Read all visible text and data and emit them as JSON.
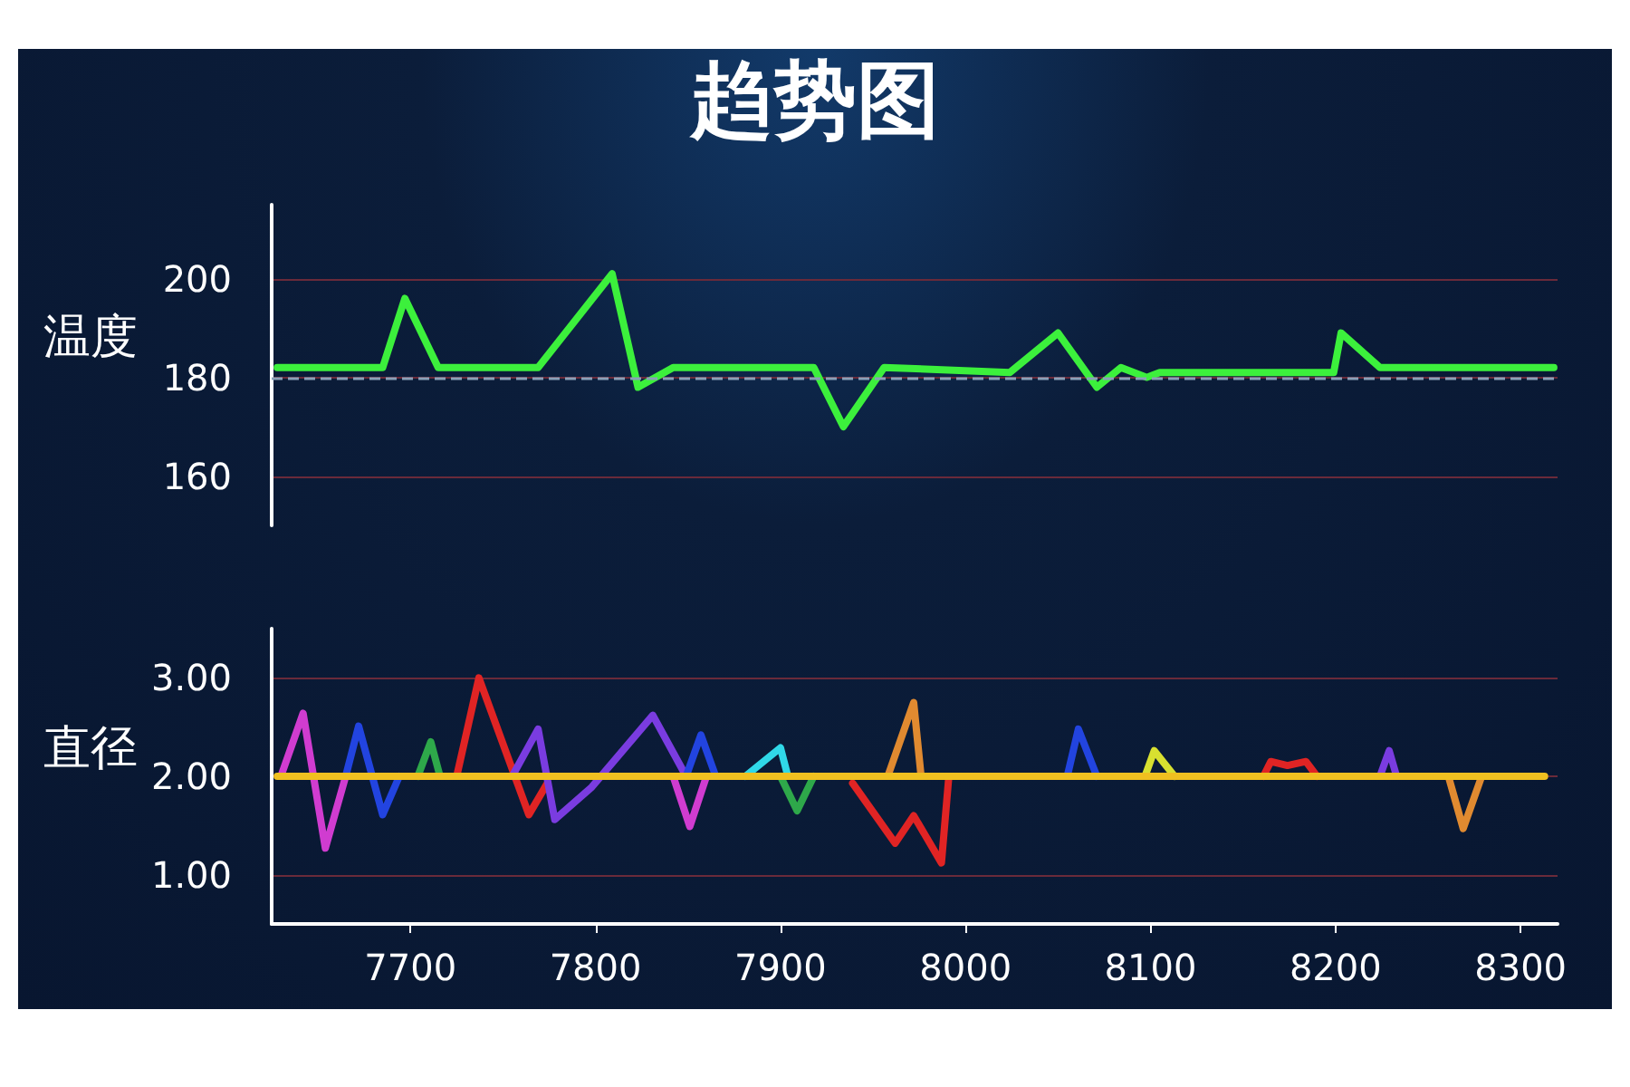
{
  "chart_data": [
    {
      "type": "line",
      "title": "趋势图",
      "ylabel": "温度",
      "xlim": [
        7625,
        8320
      ],
      "ylim": [
        150,
        215
      ],
      "yticks": [
        160,
        180,
        200
      ],
      "grid": "y",
      "tick_labels": "y",
      "marker": "none",
      "ref_lines": [
        {
          "axis": "y",
          "value": 180,
          "color": "#8aa0b8",
          "line_style": "dashed"
        }
      ],
      "series": [
        {
          "color": "#3cf03c",
          "x": [
            7628,
            7685,
            7697,
            7715,
            7769,
            7809,
            7823,
            7842,
            7918,
            7934,
            7956,
            8024,
            8050,
            8071,
            8084,
            8098,
            8105,
            8199,
            8203,
            8224,
            8318
          ],
          "values": [
            182,
            182,
            196,
            182,
            182,
            201,
            178,
            182,
            182,
            170,
            182,
            181,
            189,
            178,
            182,
            180,
            181,
            181,
            189,
            182,
            182
          ]
        }
      ]
    },
    {
      "type": "line",
      "ylabel": "直径",
      "xlim": [
        7625,
        8320
      ],
      "ylim": [
        0.5,
        3.5
      ],
      "yticks": [
        {
          "value": 1,
          "label": "1.00"
        },
        {
          "value": 2,
          "label": "2.00"
        },
        {
          "value": 3,
          "label": "3.00"
        }
      ],
      "xticks": [
        7700,
        7800,
        7900,
        8000,
        8100,
        8200,
        8300
      ],
      "grid": "y",
      "marker": "none",
      "series": [
        {
          "color": "#d03cd0",
          "x": [
            7630,
            7642,
            7654,
            7665
          ],
          "values": [
            2,
            2.64,
            1.27,
            2
          ]
        },
        {
          "color": "#2244e0",
          "x": [
            7665,
            7672,
            7685,
            7694
          ],
          "values": [
            2,
            2.51,
            1.61,
            2
          ]
        },
        {
          "color": "#2ea84a",
          "x": [
            7704,
            7711,
            7716
          ],
          "values": [
            2,
            2.35,
            2
          ]
        },
        {
          "color": "#e02424",
          "x": [
            7725,
            7737,
            7764,
            7774
          ],
          "values": [
            2,
            3,
            1.61,
            1.93
          ]
        },
        {
          "color": "#7a3ce0",
          "x": [
            7755,
            7769,
            7778,
            7798,
            7831,
            7849
          ],
          "values": [
            2,
            2.48,
            1.56,
            1.89,
            2.62,
            2
          ]
        },
        {
          "color": "#d03cd0",
          "x": [
            7842,
            7851,
            7860
          ],
          "values": [
            2,
            1.49,
            2
          ]
        },
        {
          "color": "#2244e0",
          "x": [
            7849,
            7857,
            7865
          ],
          "values": [
            2,
            2.42,
            2
          ]
        },
        {
          "color": "#30d8e8",
          "x": [
            7881,
            7900,
            7904
          ],
          "values": [
            2,
            2.29,
            2
          ]
        },
        {
          "color": "#2ea84a",
          "x": [
            7900,
            7909,
            7918
          ],
          "values": [
            2,
            1.65,
            2
          ]
        },
        {
          "color": "#e02424",
          "x": [
            7939,
            7962,
            7972,
            7987,
            7991
          ],
          "values": [
            1.93,
            1.32,
            1.6,
            1.12,
            2
          ]
        },
        {
          "color": "#e08a30",
          "x": [
            7958,
            7972,
            7976
          ],
          "values": [
            2,
            2.75,
            2
          ]
        },
        {
          "color": "#2244e0",
          "x": [
            8055,
            8061,
            8071
          ],
          "values": [
            2,
            2.48,
            2
          ]
        },
        {
          "color": "#d8e030",
          "x": [
            8097,
            8102,
            8113
          ],
          "values": [
            2,
            2.26,
            2
          ]
        },
        {
          "color": "#e02424",
          "x": [
            8161,
            8165,
            8174,
            8184,
            8190
          ],
          "values": [
            2,
            2.15,
            2.11,
            2.15,
            2
          ]
        },
        {
          "color": "#7a3ce0",
          "x": [
            8224,
            8229,
            8233
          ],
          "values": [
            2,
            2.26,
            2
          ]
        },
        {
          "color": "#e08a30",
          "x": [
            8261,
            8269,
            8279
          ],
          "values": [
            2,
            1.47,
            2
          ]
        },
        {
          "color": "#f0c020",
          "x": [
            7628,
            8313
          ],
          "values": [
            2,
            2
          ]
        }
      ]
    }
  ]
}
